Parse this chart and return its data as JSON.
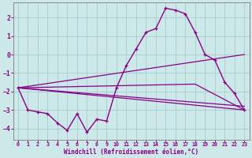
{
  "background_color": "#cce8e8",
  "grid_color": "#aacccc",
  "line_color": "#880088",
  "xlabel": "Windchill (Refroidissement éolien,°C)",
  "xlim": [
    -0.5,
    23.5
  ],
  "ylim": [
    -4.6,
    2.8
  ],
  "yticks": [
    -4,
    -3,
    -2,
    -1,
    0,
    1,
    2
  ],
  "xticks": [
    0,
    1,
    2,
    3,
    4,
    5,
    6,
    7,
    8,
    9,
    10,
    11,
    12,
    13,
    14,
    15,
    16,
    17,
    18,
    19,
    20,
    21,
    22,
    23
  ],
  "main_x": [
    0,
    1,
    2,
    3,
    4,
    5,
    6,
    7,
    8,
    9,
    10,
    11,
    12,
    13,
    14,
    15,
    16,
    17,
    18,
    19,
    20,
    21,
    22,
    23
  ],
  "main_y": [
    -1.8,
    -3.0,
    -3.1,
    -3.2,
    -3.7,
    -4.1,
    -3.2,
    -4.2,
    -3.5,
    -3.6,
    -1.8,
    -0.6,
    0.3,
    1.2,
    1.4,
    2.5,
    2.4,
    2.2,
    1.2,
    0.0,
    -0.3,
    -1.5,
    -2.1,
    -3.0
  ],
  "line1_x": [
    0,
    23
  ],
  "line1_y": [
    -1.8,
    -3.0
  ],
  "line2_x": [
    0,
    18,
    23
  ],
  "line2_y": [
    -1.8,
    -1.6,
    -3.0
  ],
  "line3_x": [
    0,
    23
  ],
  "line3_y": [
    -1.8,
    0.0
  ],
  "line4_x": [
    0,
    23
  ],
  "line4_y": [
    -1.8,
    -2.8
  ]
}
